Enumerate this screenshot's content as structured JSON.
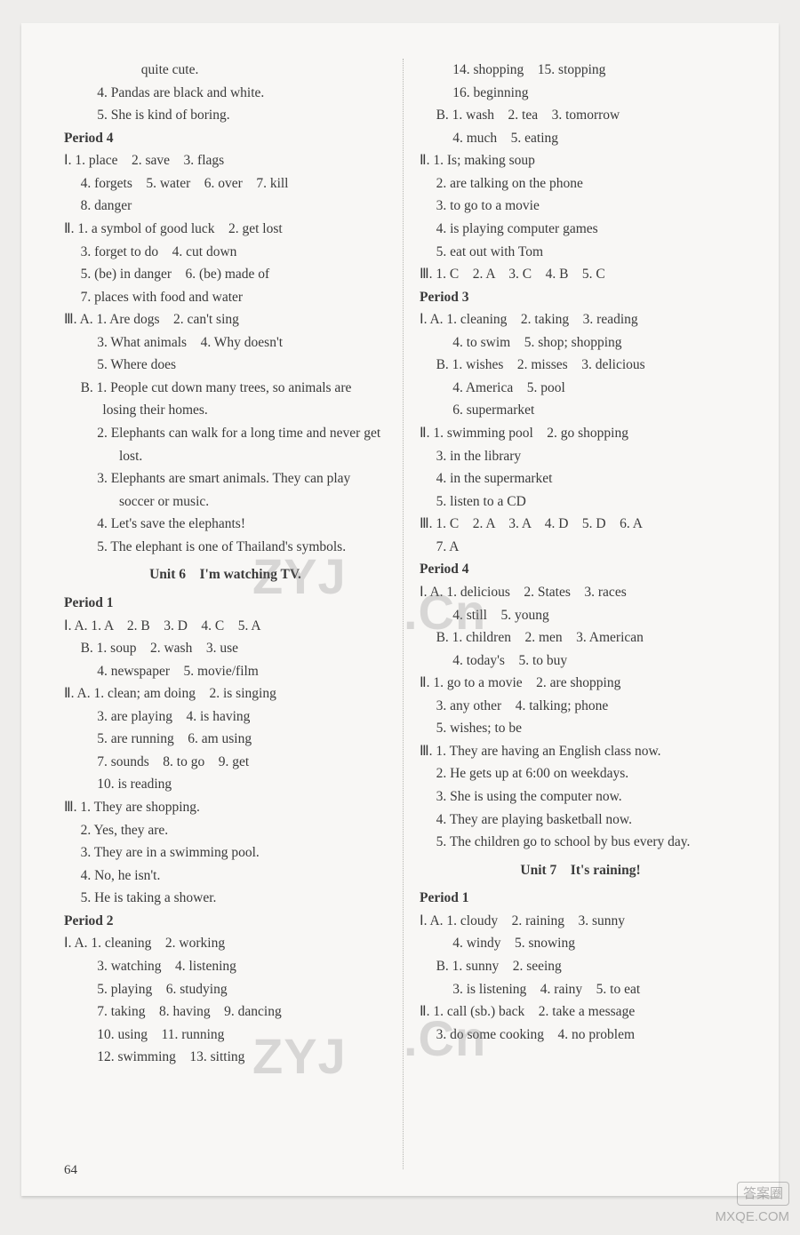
{
  "page_number": "64",
  "watermarks": {
    "w1": "ZYJ",
    "w2": ".Cn",
    "w3": "ZYJ",
    "w4": ".Cn"
  },
  "corner": {
    "top": "答案圈",
    "bottom": "MXQE.COM"
  },
  "left": {
    "opening": [
      "quite cute.",
      "4. Pandas are black and white.",
      "5. She is kind of boring."
    ],
    "period4": {
      "title": "Period 4",
      "I": [
        "Ⅰ. 1. place　2. save　3. flags",
        "4. forgets　5. water　6. over　7. kill",
        "8. danger"
      ],
      "II": [
        "Ⅱ. 1. a symbol of good luck　2. get lost",
        "3. forget to do　4. cut down",
        "5. (be) in danger　6. (be) made of",
        "7. places with food and water"
      ],
      "IIIA": [
        "Ⅲ. A. 1. Are dogs　2. can't sing",
        "3. What animals　4. Why doesn't",
        "5. Where does"
      ],
      "IIIB": [
        "B. 1. People cut down many trees, so animals are losing their homes.",
        "2. Elephants can walk for a long time and never get lost.",
        "3. Elephants are smart animals. They can play soccer or music.",
        "4. Let's save the elephants!",
        "5. The elephant is one of Thailand's symbols."
      ]
    },
    "unit6_title": "Unit 6　I'm watching TV.",
    "u6p1": {
      "title": "Period 1",
      "lines": [
        "Ⅰ. A. 1. A　2. B　3. D　4. C　5. A",
        "B. 1. soup　2. wash　3. use",
        "4. newspaper　5. movie/film",
        "Ⅱ. A. 1. clean; am doing　2. is singing",
        "3. are playing　4. is having",
        "5. are running　6. am using",
        "7. sounds　8. to go　9. get",
        "10. is reading",
        "Ⅲ. 1. They are shopping.",
        "2. Yes, they are.",
        "3. They are in a swimming pool.",
        "4. No, he isn't.",
        "5. He is taking a shower."
      ]
    },
    "u6p2": {
      "title": "Period 2",
      "lines": [
        "Ⅰ. A. 1. cleaning　2. working",
        "3. watching　4. listening",
        "5. playing　6. studying",
        "7. taking　8. having　9. dancing",
        "10. using　11. running",
        "12. swimming　13. sitting"
      ]
    }
  },
  "right": {
    "cont": [
      "14. shopping　15. stopping",
      "16. beginning",
      "B. 1. wash　2. tea　3. tomorrow",
      "4. much　5. eating"
    ],
    "II": [
      "Ⅱ. 1. Is; making soup",
      "2. are talking on the phone",
      "3. to go to a movie",
      "4. is playing computer games",
      "5. eat out with Tom"
    ],
    "III": "Ⅲ. 1. C　2. A　3. C　4. B　5. C",
    "p3": {
      "title": "Period 3",
      "lines": [
        "Ⅰ. A. 1. cleaning　2. taking　3. reading",
        "4. to swim　5. shop; shopping",
        "B. 1. wishes　2. misses　3. delicious",
        "4. America　5. pool",
        "6. supermarket",
        "Ⅱ. 1. swimming pool　2. go shopping",
        "3. in the library",
        "4. in the supermarket",
        "5. listen to a CD",
        "Ⅲ. 1. C　2. A　3. A　4. D　5. D　6. A",
        "7. A"
      ]
    },
    "p4": {
      "title": "Period 4",
      "linesA": [
        "Ⅰ. A. 1. delicious　2. States　3. races",
        "4. still　5. young",
        "B. 1. children　2. men　3. American",
        "4. today's　5. to buy"
      ],
      "II": [
        "Ⅱ. 1. go to a movie　2. are shopping",
        "3. any other　4. talking; phone",
        "5. wishes; to be"
      ],
      "III": [
        "Ⅲ. 1. They are having an English class now.",
        "2. He gets up at 6:00 on weekdays.",
        "3. She is using the computer now.",
        "4. They are playing basketball now.",
        "5. The children go to school by bus every day."
      ]
    },
    "unit7_title": "Unit 7　It's raining!",
    "u7p1": {
      "title": "Period 1",
      "lines": [
        "Ⅰ. A. 1. cloudy　2. raining　3. sunny",
        "4. windy　5. snowing",
        "B. 1. sunny　2. seeing",
        "3. is listening　4. rainy　5. to eat",
        "Ⅱ. 1. call (sb.) back　2. take a message",
        "3. do some cooking　4. no problem"
      ]
    }
  }
}
